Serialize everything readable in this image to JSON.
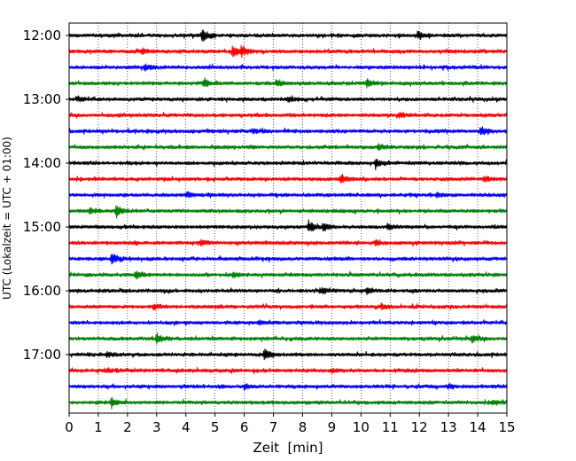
{
  "chart_data": {
    "type": "line",
    "title": "",
    "xlabel": "Zeit  [min]",
    "ylabel": "UTC (Lokalzeit = UTC + 01:00)",
    "xlim": [
      0,
      15
    ],
    "x_ticks": [
      "0",
      "1",
      "2",
      "3",
      "4",
      "5",
      "6",
      "7",
      "8",
      "9",
      "10",
      "11",
      "12",
      "13",
      "14",
      "15"
    ],
    "y_tick_labels": [
      "12:00",
      "13:00",
      "14:00",
      "15:00",
      "16:00",
      "17:00"
    ],
    "grid": "vertical dotted",
    "trace_interval_min": 15,
    "trace_colors": [
      "#000000",
      "#ff0000",
      "#0000ff",
      "#008000"
    ],
    "traces": [
      {
        "start": "12:00",
        "color": "#000000",
        "events": [
          {
            "t": 4.55,
            "a": 1.0
          },
          {
            "t": 11.95,
            "a": 0.6
          }
        ]
      },
      {
        "start": "12:15",
        "color": "#ff0000",
        "events": [
          {
            "t": 2.5,
            "a": 0.5
          },
          {
            "t": 5.6,
            "a": 0.9
          },
          {
            "t": 5.9,
            "a": 0.8
          }
        ]
      },
      {
        "start": "12:30",
        "color": "#0000ff",
        "events": [
          {
            "t": 2.6,
            "a": 0.5
          }
        ]
      },
      {
        "start": "12:45",
        "color": "#008000",
        "events": [
          {
            "t": 4.6,
            "a": 0.6
          },
          {
            "t": 7.1,
            "a": 0.5
          },
          {
            "t": 10.2,
            "a": 0.6
          }
        ]
      },
      {
        "start": "13:00",
        "color": "#000000",
        "events": [
          {
            "t": 0.3,
            "a": 0.4
          },
          {
            "t": 7.5,
            "a": 0.4
          }
        ]
      },
      {
        "start": "13:15",
        "color": "#ff0000",
        "events": [
          {
            "t": 11.3,
            "a": 0.4
          }
        ]
      },
      {
        "start": "13:30",
        "color": "#0000ff",
        "events": [
          {
            "t": 6.3,
            "a": 0.3
          },
          {
            "t": 14.1,
            "a": 0.7
          }
        ]
      },
      {
        "start": "13:45",
        "color": "#008000",
        "events": [
          {
            "t": 10.6,
            "a": 0.5
          }
        ]
      },
      {
        "start": "14:00",
        "color": "#000000",
        "events": [
          {
            "t": 10.5,
            "a": 0.7
          },
          {
            "t": 15.0,
            "a": 0.5
          }
        ]
      },
      {
        "start": "14:15",
        "color": "#ff0000",
        "events": [
          {
            "t": 9.3,
            "a": 0.8
          },
          {
            "t": 14.2,
            "a": 0.4
          }
        ]
      },
      {
        "start": "14:30",
        "color": "#0000ff",
        "events": [
          {
            "t": 4.0,
            "a": 0.4
          },
          {
            "t": 12.6,
            "a": 0.3
          }
        ]
      },
      {
        "start": "14:45",
        "color": "#008000",
        "events": [
          {
            "t": 1.6,
            "a": 0.9
          },
          {
            "t": 0.7,
            "a": 0.4
          }
        ]
      },
      {
        "start": "15:00",
        "color": "#000000",
        "events": [
          {
            "t": 8.2,
            "a": 1.0
          },
          {
            "t": 8.7,
            "a": 0.7
          },
          {
            "t": 10.9,
            "a": 0.5
          }
        ]
      },
      {
        "start": "15:15",
        "color": "#ff0000",
        "events": [
          {
            "t": 4.5,
            "a": 0.4
          },
          {
            "t": 10.5,
            "a": 0.4
          }
        ]
      },
      {
        "start": "15:30",
        "color": "#0000ff",
        "events": [
          {
            "t": 1.45,
            "a": 0.8
          }
        ]
      },
      {
        "start": "15:45",
        "color": "#008000",
        "events": [
          {
            "t": 2.3,
            "a": 0.5
          },
          {
            "t": 5.6,
            "a": 0.4
          }
        ]
      },
      {
        "start": "16:00",
        "color": "#000000",
        "events": [
          {
            "t": 8.6,
            "a": 0.4
          },
          {
            "t": 10.2,
            "a": 0.4
          }
        ]
      },
      {
        "start": "16:15",
        "color": "#ff0000",
        "events": [
          {
            "t": 2.9,
            "a": 0.4
          },
          {
            "t": 10.7,
            "a": 0.4
          }
        ]
      },
      {
        "start": "16:30",
        "color": "#0000ff",
        "events": [
          {
            "t": 6.5,
            "a": 0.3
          }
        ]
      },
      {
        "start": "16:45",
        "color": "#008000",
        "events": [
          {
            "t": 3.0,
            "a": 0.8
          },
          {
            "t": 13.8,
            "a": 0.6
          }
        ]
      },
      {
        "start": "17:00",
        "color": "#000000",
        "events": [
          {
            "t": 6.7,
            "a": 1.0
          },
          {
            "t": 1.3,
            "a": 0.4
          }
        ]
      },
      {
        "start": "17:15",
        "color": "#ff0000",
        "events": [
          {
            "t": 1.3,
            "a": 0.3
          },
          {
            "t": 9.0,
            "a": 0.3
          }
        ]
      },
      {
        "start": "17:30",
        "color": "#0000ff",
        "events": [
          {
            "t": 6.0,
            "a": 0.4
          },
          {
            "t": 13.0,
            "a": 0.3
          }
        ]
      },
      {
        "start": "17:45",
        "color": "#008000",
        "events": [
          {
            "t": 1.45,
            "a": 0.8
          },
          {
            "t": 14.5,
            "a": 0.4
          }
        ]
      }
    ]
  }
}
